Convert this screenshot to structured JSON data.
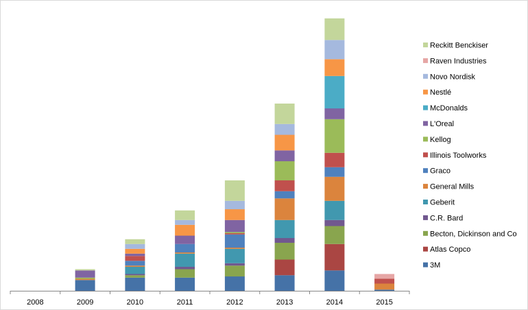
{
  "chart_data": {
    "type": "bar",
    "stacked": true,
    "title": "",
    "xlabel": "",
    "ylabel": "",
    "y_axis_visible": false,
    "grid": false,
    "legend_position": "right",
    "categories": [
      "2008",
      "2009",
      "2010",
      "2011",
      "2012",
      "2013",
      "2014",
      "2015"
    ],
    "ylim": [
      0,
      110
    ],
    "series": [
      {
        "name": "3M",
        "color": "#4572a7",
        "values": [
          0,
          4.5,
          5.5,
          5.5,
          6,
          6.5,
          8.5,
          0.5
        ]
      },
      {
        "name": "Atlas Copco",
        "color": "#aa4643",
        "values": [
          0,
          0,
          0,
          0,
          0,
          6.5,
          11,
          0
        ]
      },
      {
        "name": "Becton, Dickinson and Co",
        "color": "#89a54e",
        "values": [
          0,
          0,
          1,
          3.5,
          4.5,
          7,
          7.5,
          0
        ]
      },
      {
        "name": "C.R. Bard",
        "color": "#71588f",
        "values": [
          0,
          0,
          0.5,
          1,
          1,
          2,
          2.5,
          0
        ]
      },
      {
        "name": "Geberit",
        "color": "#4198af",
        "values": [
          0,
          0,
          3,
          5.5,
          6,
          7.5,
          8,
          0
        ]
      },
      {
        "name": "General Mills",
        "color": "#db843d",
        "values": [
          0,
          0.5,
          0.5,
          0.5,
          0.5,
          9,
          10,
          2.5
        ]
      },
      {
        "name": "Graco",
        "color": "#4f81bd",
        "values": [
          0,
          0,
          2,
          3.5,
          5.5,
          3,
          4,
          0
        ]
      },
      {
        "name": "Illinois Toolworks",
        "color": "#c0504d",
        "values": [
          0,
          0,
          2,
          0,
          0.5,
          4.5,
          6,
          2
        ]
      },
      {
        "name": "Kellog",
        "color": "#9bbb59",
        "values": [
          0,
          0.5,
          0,
          0,
          0.5,
          8,
          14,
          0
        ]
      },
      {
        "name": "L'Oreal",
        "color": "#8064a2",
        "values": [
          0,
          3,
          1,
          3.5,
          5,
          4.5,
          4.5,
          0
        ]
      },
      {
        "name": "McDonalds",
        "color": "#4bacc6",
        "values": [
          0,
          0,
          0,
          0,
          0,
          0,
          13.5,
          0
        ]
      },
      {
        "name": "Nestlé",
        "color": "#f79646",
        "values": [
          0,
          0,
          2,
          4.5,
          4.5,
          6.5,
          7,
          0
        ]
      },
      {
        "name": "Novo Nordisk",
        "color": "#a5b9de",
        "values": [
          0,
          0,
          2,
          2,
          3.5,
          4.5,
          8,
          0
        ]
      },
      {
        "name": "Raven Industries",
        "color": "#e6a6a5",
        "values": [
          0,
          0,
          0,
          0,
          0,
          0,
          0,
          2
        ]
      },
      {
        "name": "Reckitt Benckiser",
        "color": "#c3d69b",
        "values": [
          0,
          0.5,
          2,
          4,
          8.5,
          8.5,
          9,
          0
        ]
      }
    ]
  }
}
